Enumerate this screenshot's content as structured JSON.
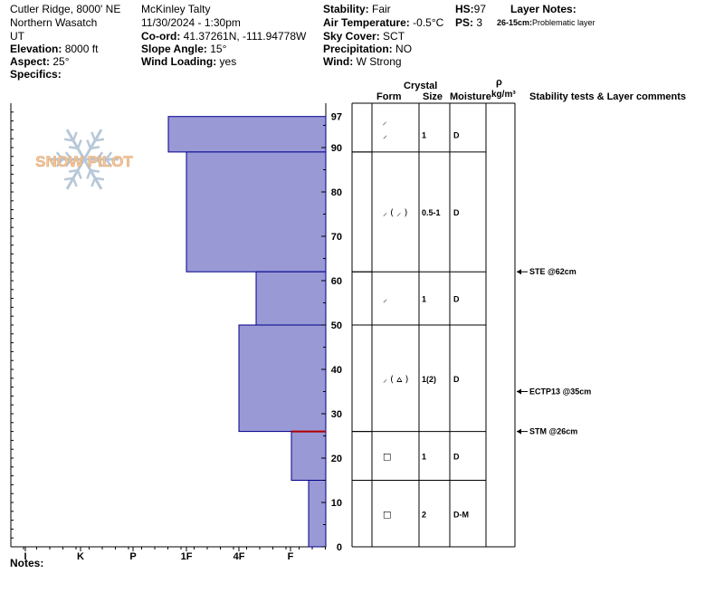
{
  "header": {
    "col1": {
      "location": "Cutler Ridge, 8000' NE",
      "range": "Northern Wasatch",
      "state": "UT",
      "elevation_label": "Elevation:",
      "elevation_value": "8000 ft",
      "aspect_label": "Aspect:",
      "aspect_value": "25°",
      "specifics_label": "Specifics:"
    },
    "col2": {
      "observer": "McKinley Talty",
      "datetime": "11/30/2024 - 1:30pm",
      "coord_label": "Co-ord:",
      "coord_value": "41.37261N, -111.94778W",
      "slope_label": "Slope Angle:",
      "slope_value": "15°",
      "wind_loading_label": "Wind Loading:",
      "wind_loading_value": "yes"
    },
    "col3": {
      "stability_label": "Stability:",
      "stability_value": "Fair",
      "air_temp_label": "Air Temperature:",
      "air_temp_value": "-0.5°C",
      "sky_label": "Sky Cover:",
      "sky_value": "SCT",
      "precip_label": "Precipitation:",
      "precip_value": "NO",
      "wind_label": "Wind:",
      "wind_value": "W Strong"
    },
    "col4": {
      "hs_label": "HS:",
      "hs_value": "97",
      "ps_label": "PS:",
      "ps_value": "3"
    },
    "layer_notes": {
      "title": "Layer Notes:",
      "range": "26-15cm:",
      "text": "Problematic layer"
    }
  },
  "logo_text": "SNOW PILOT",
  "footer": {
    "notes_label": "Notes:"
  },
  "colors": {
    "bar_fill": "#9999D6",
    "bar_stroke": "#00008B",
    "marker_red": "#B00000"
  },
  "chart_data": {
    "type": "snow-profile",
    "hardness_axis": {
      "labels": [
        "I",
        "K",
        "P",
        "1F",
        "4F",
        "F"
      ]
    },
    "depth_axis": {
      "ticks": [
        0,
        10,
        20,
        30,
        40,
        50,
        60,
        70,
        80,
        90,
        97
      ],
      "ylim": [
        0,
        97
      ],
      "unit": "cm"
    },
    "column_headers": {
      "form": "Form",
      "crystal": "Crystal",
      "size": "Size",
      "moisture": "Moisture",
      "rho": "ρ",
      "density_unit": "kg/m³",
      "stability": "Stability tests & Layer comments"
    },
    "layers": [
      {
        "top": 97,
        "bottom": 89,
        "hardness": "4F+",
        "form": "DF",
        "form_symbol": "⸝",
        "size": "1",
        "moisture": "D"
      },
      {
        "top": 89,
        "bottom": 62,
        "hardness": "4F",
        "form": "DF (DF)",
        "form_symbol": "⸝ ( ⸝ )",
        "size": "0.5-1",
        "moisture": "D"
      },
      {
        "top": 62,
        "bottom": 50,
        "hardness": "1F",
        "form": "DF",
        "form_symbol": "⸝",
        "size": "1",
        "moisture": "D"
      },
      {
        "top": 50,
        "bottom": 26,
        "hardness": "1F+",
        "form": "DF (RG)",
        "form_symbol": "⸝ ( ⩟ )",
        "size": "1(2)",
        "moisture": "D"
      },
      {
        "top": 26,
        "bottom": 15,
        "hardness": "P",
        "form": "FC",
        "form_symbol": "□",
        "size": "1",
        "moisture": "D"
      },
      {
        "top": 15,
        "bottom": 0,
        "hardness": "K",
        "form": "FC",
        "form_symbol": "□",
        "size": "2",
        "moisture": "D-M"
      }
    ],
    "tests": [
      {
        "depth": 62,
        "label": "STE @62cm"
      },
      {
        "depth": 35,
        "label": "ECTP13 @35cm"
      },
      {
        "depth": 26,
        "label": "STM @26cm"
      }
    ],
    "top_form_symbol": "⸝"
  }
}
